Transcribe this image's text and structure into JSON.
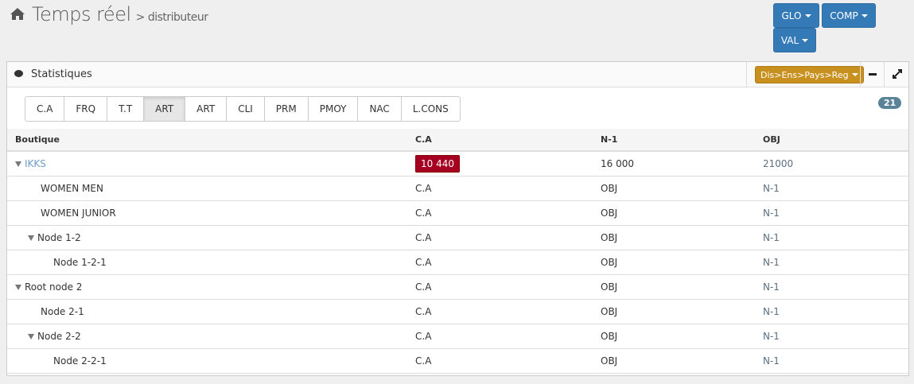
{
  "header": {
    "title": "Temps réel",
    "subtitle": "> distributeur",
    "icon": "home-icon"
  },
  "top_buttons": {
    "glo": "GLO",
    "comp": "COMP",
    "val": "VAL"
  },
  "panel": {
    "title": "Statistiques",
    "icon": "comments-icon",
    "hierarchy": "Dis>Ens>Pays>Reg",
    "minimize_icon": "minus-icon",
    "expand_icon": "expand-icon"
  },
  "tabs": [
    {
      "label": "C.A"
    },
    {
      "label": "FRQ"
    },
    {
      "label": "T.T"
    },
    {
      "label": "ART",
      "active": true
    },
    {
      "label": "ART"
    },
    {
      "label": "CLI"
    },
    {
      "label": "PRM"
    },
    {
      "label": "PMOY"
    },
    {
      "label": "NAC"
    },
    {
      "label": "L.CONS"
    }
  ],
  "badge": "21",
  "table": {
    "columns": [
      "Boutique",
      "C.A",
      "N-1",
      "OBJ"
    ],
    "rows": [
      {
        "name": "IKKS",
        "level": 0,
        "expanded": true,
        "ca": "10 440",
        "n1": "16 000",
        "obj": "21000",
        "ca_color": "#a50022"
      },
      {
        "name": "WOMEN MEN",
        "level": 1,
        "ca": "C.A",
        "n1": "OBJ",
        "obj": "N-1"
      },
      {
        "name": "WOMEN JUNIOR",
        "level": 1,
        "ca": "C.A",
        "n1": "OBJ",
        "obj": "N-1"
      },
      {
        "name": "Node 1-2",
        "level": 1,
        "expanded": true,
        "ca": "C.A",
        "n1": "OBJ",
        "obj": "N-1"
      },
      {
        "name": "Node 1-2-1",
        "level": 2,
        "ca": "C.A",
        "n1": "OBJ",
        "obj": "N-1"
      },
      {
        "name": "Root node 2",
        "level": 0,
        "expanded": true,
        "ca": "C.A",
        "n1": "OBJ",
        "obj": "N-1"
      },
      {
        "name": "Node 2-1",
        "level": 1,
        "ca": "C.A",
        "n1": "OBJ",
        "obj": "N-1"
      },
      {
        "name": "Node 2-2",
        "level": 1,
        "expanded": true,
        "ca": "C.A",
        "n1": "OBJ",
        "obj": "N-1"
      },
      {
        "name": "Node 2-2-1",
        "level": 2,
        "ca": "C.A",
        "n1": "OBJ",
        "obj": "N-1"
      }
    ]
  }
}
